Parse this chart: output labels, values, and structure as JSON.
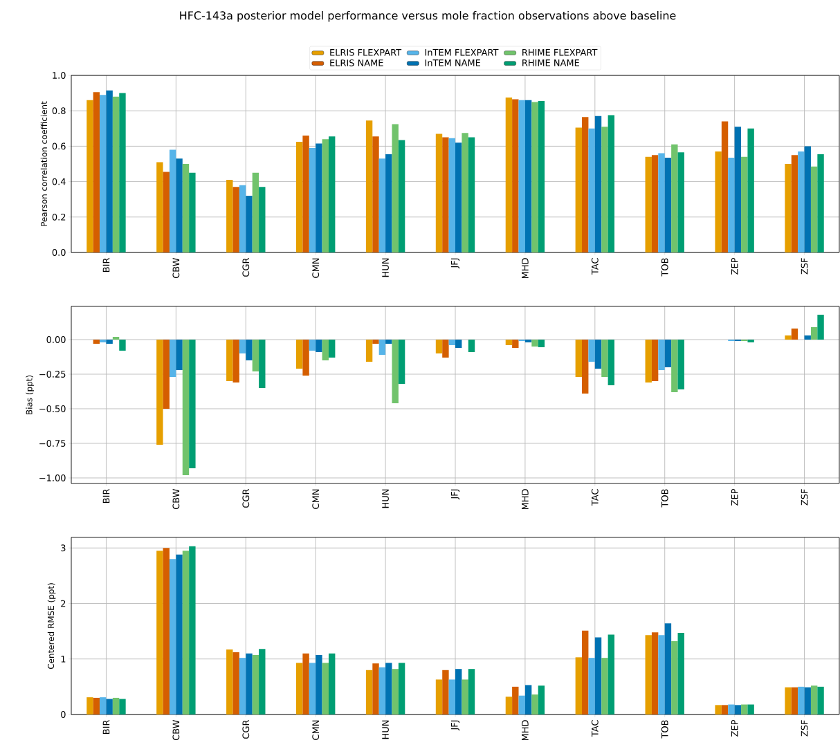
{
  "chart_data": [
    {
      "type": "bar",
      "title": "HFC-143a posterior model performance versus mole fraction observations above baseline",
      "ylabel": "Pearson correlation coefficient",
      "grid": true,
      "legend": "top",
      "categories": [
        "BIR",
        "CBW",
        "CGR",
        "CMN",
        "HUN",
        "JFJ",
        "MHD",
        "TAC",
        "TOB",
        "ZEP",
        "ZSF"
      ],
      "ylim": [
        0,
        1.0
      ],
      "yticks": [
        {
          "value": 0,
          "label": "0.0"
        },
        {
          "value": 0.2,
          "label": "0.2"
        },
        {
          "value": 0.4,
          "label": "0.4"
        },
        {
          "value": 0.6,
          "label": "0.6"
        },
        {
          "value": 0.8,
          "label": "0.8"
        },
        {
          "value": 1.0,
          "label": "1.0"
        }
      ],
      "series": [
        {
          "name": "ELRIS FLEXPART",
          "color": "#e69f00",
          "values": [
            0.86,
            0.51,
            0.41,
            0.625,
            0.745,
            0.67,
            0.875,
            0.705,
            0.54,
            0.57,
            0.5
          ]
        },
        {
          "name": "ELRIS NAME",
          "color": "#d55e00",
          "values": [
            0.905,
            0.455,
            0.37,
            0.66,
            0.655,
            0.65,
            0.865,
            0.765,
            0.55,
            0.74,
            0.55
          ]
        },
        {
          "name": "InTEM FLEXPART",
          "color": "#56b4e9",
          "values": [
            0.89,
            0.58,
            0.38,
            0.59,
            0.53,
            0.645,
            0.86,
            0.7,
            0.56,
            0.535,
            0.57
          ]
        },
        {
          "name": "InTEM NAME",
          "color": "#0072b2",
          "values": [
            0.915,
            0.53,
            0.32,
            0.615,
            0.555,
            0.62,
            0.86,
            0.77,
            0.535,
            0.71,
            0.6
          ]
        },
        {
          "name": "RHIME FLEXPART",
          "color": "#71c36c",
          "values": [
            0.88,
            0.5,
            0.45,
            0.64,
            0.725,
            0.675,
            0.85,
            0.71,
            0.61,
            0.54,
            0.485
          ]
        },
        {
          "name": "RHIME NAME",
          "color": "#009e73",
          "values": [
            0.9,
            0.45,
            0.37,
            0.655,
            0.635,
            0.65,
            0.855,
            0.775,
            0.565,
            0.7,
            0.555
          ]
        }
      ]
    },
    {
      "type": "bar",
      "ylabel": "Bias (ppt)",
      "grid": true,
      "categories": [
        "BIR",
        "CBW",
        "CGR",
        "CMN",
        "HUN",
        "JFJ",
        "MHD",
        "TAC",
        "TOB",
        "ZEP",
        "ZSF"
      ],
      "ylim": [
        -1.04,
        0.24
      ],
      "yticks": [
        {
          "value": -1.0,
          "label": "−1.00"
        },
        {
          "value": -0.75,
          "label": "−0.75"
        },
        {
          "value": -0.5,
          "label": "−0.50"
        },
        {
          "value": -0.25,
          "label": "−0.25"
        },
        {
          "value": 0,
          "label": "0.00"
        }
      ],
      "series": [
        {
          "color": "#e69f00",
          "values": [
            0,
            -0.76,
            -0.3,
            -0.21,
            -0.16,
            -0.1,
            -0.04,
            -0.27,
            -0.31,
            0,
            0.03
          ]
        },
        {
          "color": "#d55e00",
          "values": [
            -0.03,
            -0.5,
            -0.31,
            -0.26,
            -0.03,
            -0.13,
            -0.06,
            -0.39,
            -0.3,
            0,
            0.08
          ]
        },
        {
          "color": "#56b4e9",
          "values": [
            -0.02,
            -0.27,
            -0.1,
            -0.08,
            -0.11,
            -0.04,
            -0.01,
            -0.16,
            -0.22,
            -0.01,
            0
          ]
        },
        {
          "color": "#0072b2",
          "values": [
            -0.03,
            -0.22,
            -0.15,
            -0.09,
            -0.03,
            -0.06,
            -0.02,
            -0.21,
            -0.2,
            -0.01,
            0.03
          ]
        },
        {
          "color": "#71c36c",
          "values": [
            0.02,
            -0.98,
            -0.23,
            -0.15,
            -0.46,
            0,
            -0.05,
            -0.27,
            -0.38,
            -0.01,
            0.09
          ]
        },
        {
          "color": "#009e73",
          "values": [
            -0.08,
            -0.93,
            -0.35,
            -0.13,
            -0.32,
            -0.09,
            -0.055,
            -0.33,
            -0.36,
            -0.02,
            0.18
          ]
        }
      ]
    },
    {
      "type": "bar",
      "ylabel": "Centered RMSE (ppt)",
      "grid": true,
      "categories": [
        "BIR",
        "CBW",
        "CGR",
        "CMN",
        "HUN",
        "JFJ",
        "MHD",
        "TAC",
        "TOB",
        "ZEP",
        "ZSF"
      ],
      "ylim": [
        0,
        3.19
      ],
      "yticks": [
        0,
        1,
        2,
        3
      ],
      "series": [
        {
          "color": "#e69f00",
          "values": [
            0.31,
            2.95,
            1.17,
            0.93,
            0.8,
            0.63,
            0.32,
            1.03,
            1.43,
            0.17,
            0.49
          ]
        },
        {
          "color": "#d55e00",
          "values": [
            0.3,
            3.0,
            1.12,
            1.1,
            0.92,
            0.8,
            0.5,
            1.51,
            1.48,
            0.17,
            0.49
          ]
        },
        {
          "color": "#56b4e9",
          "values": [
            0.31,
            2.8,
            1.02,
            0.93,
            0.85,
            0.63,
            0.34,
            1.02,
            1.43,
            0.18,
            0.5
          ]
        },
        {
          "color": "#0072b2",
          "values": [
            0.28,
            2.88,
            1.1,
            1.07,
            0.93,
            0.82,
            0.53,
            1.39,
            1.64,
            0.17,
            0.49
          ]
        },
        {
          "color": "#71c36c",
          "values": [
            0.3,
            2.95,
            1.07,
            0.93,
            0.82,
            0.63,
            0.36,
            1.02,
            1.32,
            0.18,
            0.52
          ]
        },
        {
          "color": "#009e73",
          "values": [
            0.28,
            3.03,
            1.18,
            1.1,
            0.93,
            0.82,
            0.52,
            1.44,
            1.47,
            0.18,
            0.5
          ]
        }
      ]
    }
  ]
}
